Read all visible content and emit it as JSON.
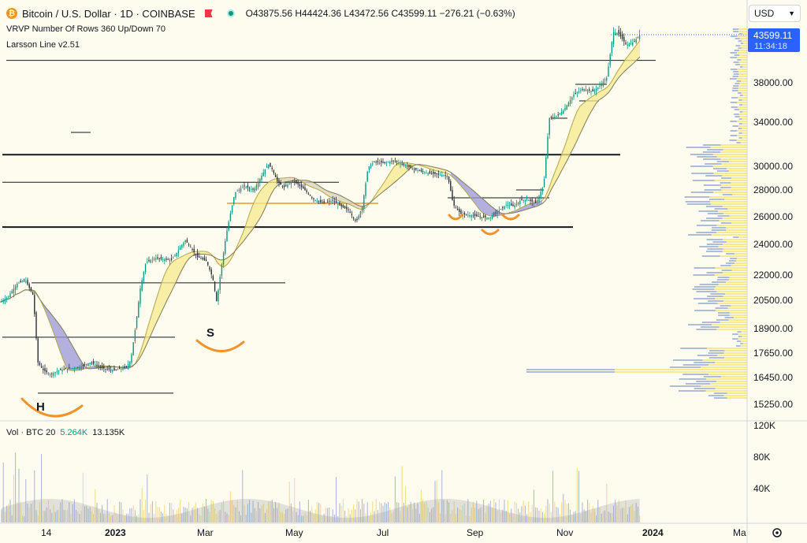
{
  "header": {
    "symbol_title": "Bitcoin / U.S. Dollar · 1D · COINBASE",
    "ohlc": "O43875.56 H44424.36 L43472.56 C43599.11 −276.21 (−0.63%)",
    "indicator_vrvp": "VRVP Number Of Rows 360 Up/Down 70",
    "indicator_larsson": "Larsson Line v2.51",
    "volume_label": "Vol · BTC 20",
    "volume_value_1": "5.264K",
    "volume_value_2": "13.135K",
    "currency": "USD"
  },
  "price_badge": {
    "price": "43599.11",
    "time": "11:34:18"
  },
  "icons": {
    "coin": "bitcoin-icon",
    "flag": "flag-icon",
    "dot": "market-status-icon",
    "chevron": "chevron-down-icon",
    "settings": "gear-icon"
  },
  "colors": {
    "background": "#fefcef",
    "bull": "#089981",
    "bear": "#f23645",
    "larsson_fill": "#f6ea8c",
    "purple_fill": "#9a97d8",
    "pattern": "#f0932b",
    "badge": "#2962ff"
  },
  "annotations": {
    "left_shoulder": "H",
    "right_shoulder": "S"
  },
  "chart_data": {
    "type": "candlestick",
    "y_ticks": [
      "38000.00",
      "34000.00",
      "30000.00",
      "28000.00",
      "26000.00",
      "24000.00",
      "22000.00",
      "20500.00",
      "18900.00",
      "17650.00",
      "16450.00",
      "15250.00"
    ],
    "volume_ticks": [
      "120K",
      "80K",
      "40K"
    ],
    "x_ticks": [
      "14",
      "2023",
      "Mar",
      "May",
      "Jul",
      "Sep",
      "Nov",
      "2024",
      "Ma"
    ],
    "last_price": 43599.11,
    "high_low_range": [
      15300,
      44500
    ],
    "price_path": [
      [
        0,
        20400
      ],
      [
        10,
        20700
      ],
      [
        22,
        21500
      ],
      [
        32,
        21700
      ],
      [
        42,
        20800
      ],
      [
        48,
        17200
      ],
      [
        55,
        16800
      ],
      [
        64,
        16600
      ],
      [
        75,
        16800
      ],
      [
        88,
        16900
      ],
      [
        100,
        16950
      ],
      [
        115,
        17200
      ],
      [
        130,
        16900
      ],
      [
        145,
        16800
      ],
      [
        160,
        16950
      ],
      [
        166,
        17300
      ],
      [
        172,
        19000
      ],
      [
        178,
        21200
      ],
      [
        185,
        22800
      ],
      [
        195,
        23100
      ],
      [
        210,
        23000
      ],
      [
        218,
        23000
      ],
      [
        225,
        23500
      ],
      [
        235,
        24300
      ],
      [
        242,
        23800
      ],
      [
        250,
        23200
      ],
      [
        262,
        22900
      ],
      [
        270,
        21800
      ],
      [
        275,
        20400
      ],
      [
        280,
        22200
      ],
      [
        288,
        25000
      ],
      [
        298,
        27800
      ],
      [
        310,
        28300
      ],
      [
        322,
        28000
      ],
      [
        332,
        29200
      ],
      [
        340,
        30200
      ],
      [
        345,
        29800
      ],
      [
        352,
        28700
      ],
      [
        360,
        28200
      ],
      [
        372,
        28800
      ],
      [
        385,
        28100
      ],
      [
        398,
        27300
      ],
      [
        410,
        27000
      ],
      [
        422,
        27200
      ],
      [
        432,
        26800
      ],
      [
        442,
        26500
      ],
      [
        452,
        25600
      ],
      [
        460,
        26800
      ],
      [
        467,
        29900
      ],
      [
        475,
        30400
      ],
      [
        488,
        30300
      ],
      [
        500,
        30500
      ],
      [
        510,
        30200
      ],
      [
        520,
        29900
      ],
      [
        532,
        29600
      ],
      [
        545,
        29400
      ],
      [
        558,
        29300
      ],
      [
        568,
        29200
      ],
      [
        575,
        26900
      ],
      [
        585,
        26200
      ],
      [
        598,
        26100
      ],
      [
        610,
        26000
      ],
      [
        620,
        25900
      ],
      [
        632,
        26400
      ],
      [
        642,
        26900
      ],
      [
        652,
        26800
      ],
      [
        660,
        27200
      ],
      [
        668,
        27300
      ],
      [
        680,
        27000
      ],
      [
        690,
        28400
      ],
      [
        697,
        34400
      ],
      [
        705,
        34600
      ],
      [
        715,
        35200
      ],
      [
        728,
        36800
      ],
      [
        740,
        37400
      ],
      [
        752,
        37100
      ],
      [
        760,
        37600
      ],
      [
        770,
        38600
      ],
      [
        778,
        43800
      ],
      [
        785,
        43700
      ],
      [
        795,
        42400
      ],
      [
        805,
        42800
      ],
      [
        812,
        43600
      ]
    ],
    "horizontal_levels": [
      {
        "from": 8,
        "to": 832,
        "price": 40600
      },
      {
        "from": 3,
        "to": 787,
        "price": 31050
      },
      {
        "from": 3,
        "to": 430,
        "price": 28650
      },
      {
        "from": 3,
        "to": 727,
        "price": 25250
      },
      {
        "from": 40,
        "to": 362,
        "price": 21540
      },
      {
        "from": 3,
        "to": 222,
        "price": 18460
      },
      {
        "from": 48,
        "to": 220,
        "price": 15750
      }
    ]
  }
}
